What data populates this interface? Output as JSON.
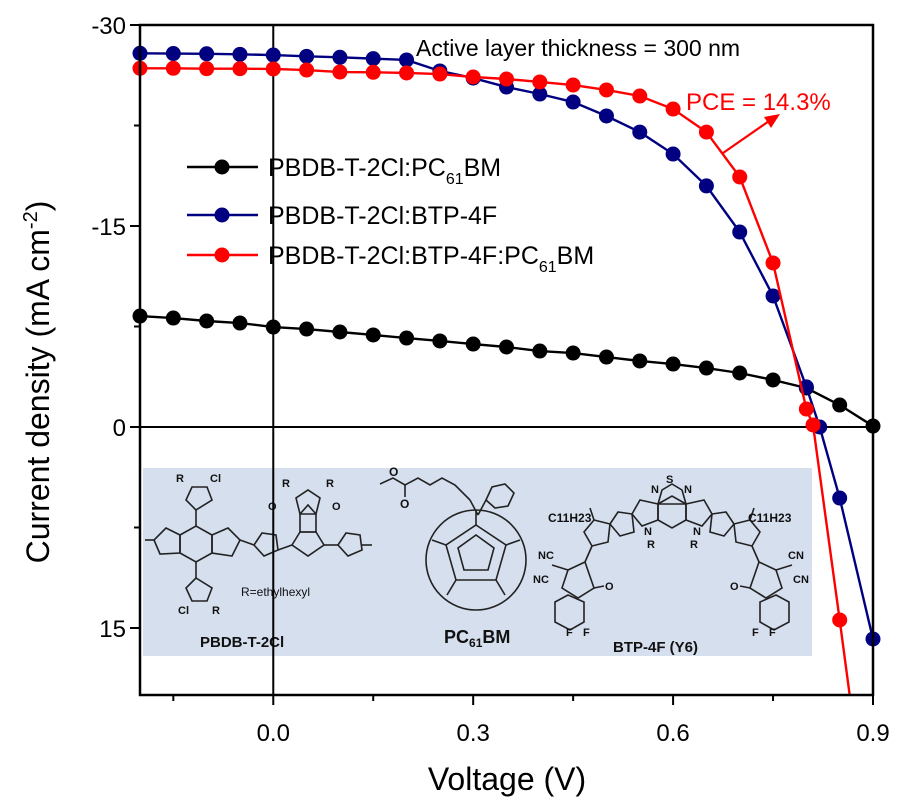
{
  "chart_data": {
    "type": "line",
    "title": "",
    "xlabel": "Voltage (V)",
    "ylabel_main": "Current density (mA cm",
    "ylabel_sup": "-2",
    "ylabel_tail": ")",
    "xlim": [
      -0.2,
      0.9
    ],
    "ylim": [
      -30,
      20
    ],
    "y_inverted": true,
    "grid": false,
    "x_ticks": [
      0.0,
      0.3,
      0.6,
      0.9
    ],
    "x_tick_labels": [
      "0.0",
      "0.3",
      "0.6",
      "0.9"
    ],
    "x_minor_ticks": [
      -0.15,
      0.15,
      0.45,
      0.75
    ],
    "y_ticks": [
      -30,
      -15,
      0,
      15
    ],
    "y_tick_labels": [
      "-30",
      "-15",
      "0",
      "15"
    ],
    "y_minor_ticks": [
      -22.5,
      -7.5,
      7.5
    ],
    "reference_lines": {
      "x": 0,
      "y": 0
    },
    "legend_position": "upper-left",
    "series": [
      {
        "name": "PBDB-T-2Cl:PC61BM",
        "label_main": "PBDB-T-2Cl:PC",
        "label_sub": "61",
        "label_tail": "BM",
        "color": "#000000",
        "x": [
          -0.2,
          -0.15,
          -0.1,
          -0.05,
          0.0,
          0.05,
          0.1,
          0.15,
          0.2,
          0.25,
          0.3,
          0.35,
          0.4,
          0.45,
          0.5,
          0.55,
          0.6,
          0.65,
          0.7,
          0.75,
          0.8,
          0.85,
          0.9
        ],
        "y": [
          -8.28,
          -8.13,
          -7.91,
          -7.76,
          -7.46,
          -7.31,
          -7.09,
          -6.87,
          -6.64,
          -6.42,
          -6.19,
          -5.97,
          -5.67,
          -5.52,
          -5.22,
          -4.93,
          -4.7,
          -4.4,
          -4.03,
          -3.51,
          -2.91,
          -1.64,
          -0.07
        ]
      },
      {
        "name": "PBDB-T-2Cl:BTP-4F",
        "label_main": "PBDB-T-2Cl:BTP-4F",
        "label_sub": "",
        "label_tail": "",
        "color": "#000080",
        "x": [
          -0.2,
          -0.15,
          -0.1,
          -0.05,
          0.0,
          0.05,
          0.1,
          0.15,
          0.2,
          0.25,
          0.3,
          0.35,
          0.4,
          0.45,
          0.5,
          0.55,
          0.6,
          0.65,
          0.7,
          0.75,
          0.8,
          0.82,
          0.85,
          0.9
        ],
        "y": [
          -27.89,
          -27.87,
          -27.85,
          -27.81,
          -27.76,
          -27.66,
          -27.59,
          -27.49,
          -27.39,
          -26.57,
          -26.04,
          -25.37,
          -24.85,
          -24.25,
          -23.21,
          -22.01,
          -20.37,
          -17.99,
          -14.55,
          -9.78,
          -2.99,
          0.0,
          5.3,
          15.82
        ]
      },
      {
        "name": "PBDB-T-2Cl:BTP-4F:PC61BM",
        "label_main": "PBDB-T-2Cl:BTP-4F:PC",
        "label_sub": "61",
        "label_tail": "BM",
        "color": "#ff0000",
        "x": [
          -0.2,
          -0.15,
          -0.1,
          -0.05,
          0.0,
          0.05,
          0.1,
          0.15,
          0.2,
          0.25,
          0.3,
          0.35,
          0.4,
          0.45,
          0.5,
          0.55,
          0.6,
          0.65,
          0.7,
          0.75,
          0.8,
          0.81,
          0.85
        ],
        "y": [
          -26.77,
          -26.77,
          -26.74,
          -26.74,
          -26.72,
          -26.64,
          -26.49,
          -26.47,
          -26.42,
          -26.34,
          -26.12,
          -25.97,
          -25.75,
          -25.52,
          -25.15,
          -24.7,
          -23.73,
          -22.01,
          -18.66,
          -12.24,
          -1.34,
          -0.15,
          14.4
        ],
        "line_extends_to": [
          0.865,
          20
        ]
      }
    ],
    "annotations": [
      {
        "text": "Active layer thickness = 300 nm",
        "color": "#000000"
      },
      {
        "text": "PCE = 14.3%",
        "color": "#ff0000",
        "arrow_points_to_series": "PBDB-T-2Cl:BTP-4F:PC61BM"
      }
    ],
    "inset": {
      "background": "#d6dfee",
      "molecules": [
        {
          "name": "PBDB-T-2Cl",
          "substituent_note": "R=ethylhexyl",
          "atoms": [
            "R",
            "Cl",
            "S",
            "O"
          ]
        },
        {
          "name_main": "PC",
          "name_sub": "61",
          "name_tail": "BM"
        },
        {
          "name": "BTP-4F (Y6)",
          "side_chain": "C11H23",
          "atoms": [
            "N",
            "S",
            "R",
            "NC",
            "CN",
            "O",
            "F"
          ]
        }
      ]
    }
  }
}
